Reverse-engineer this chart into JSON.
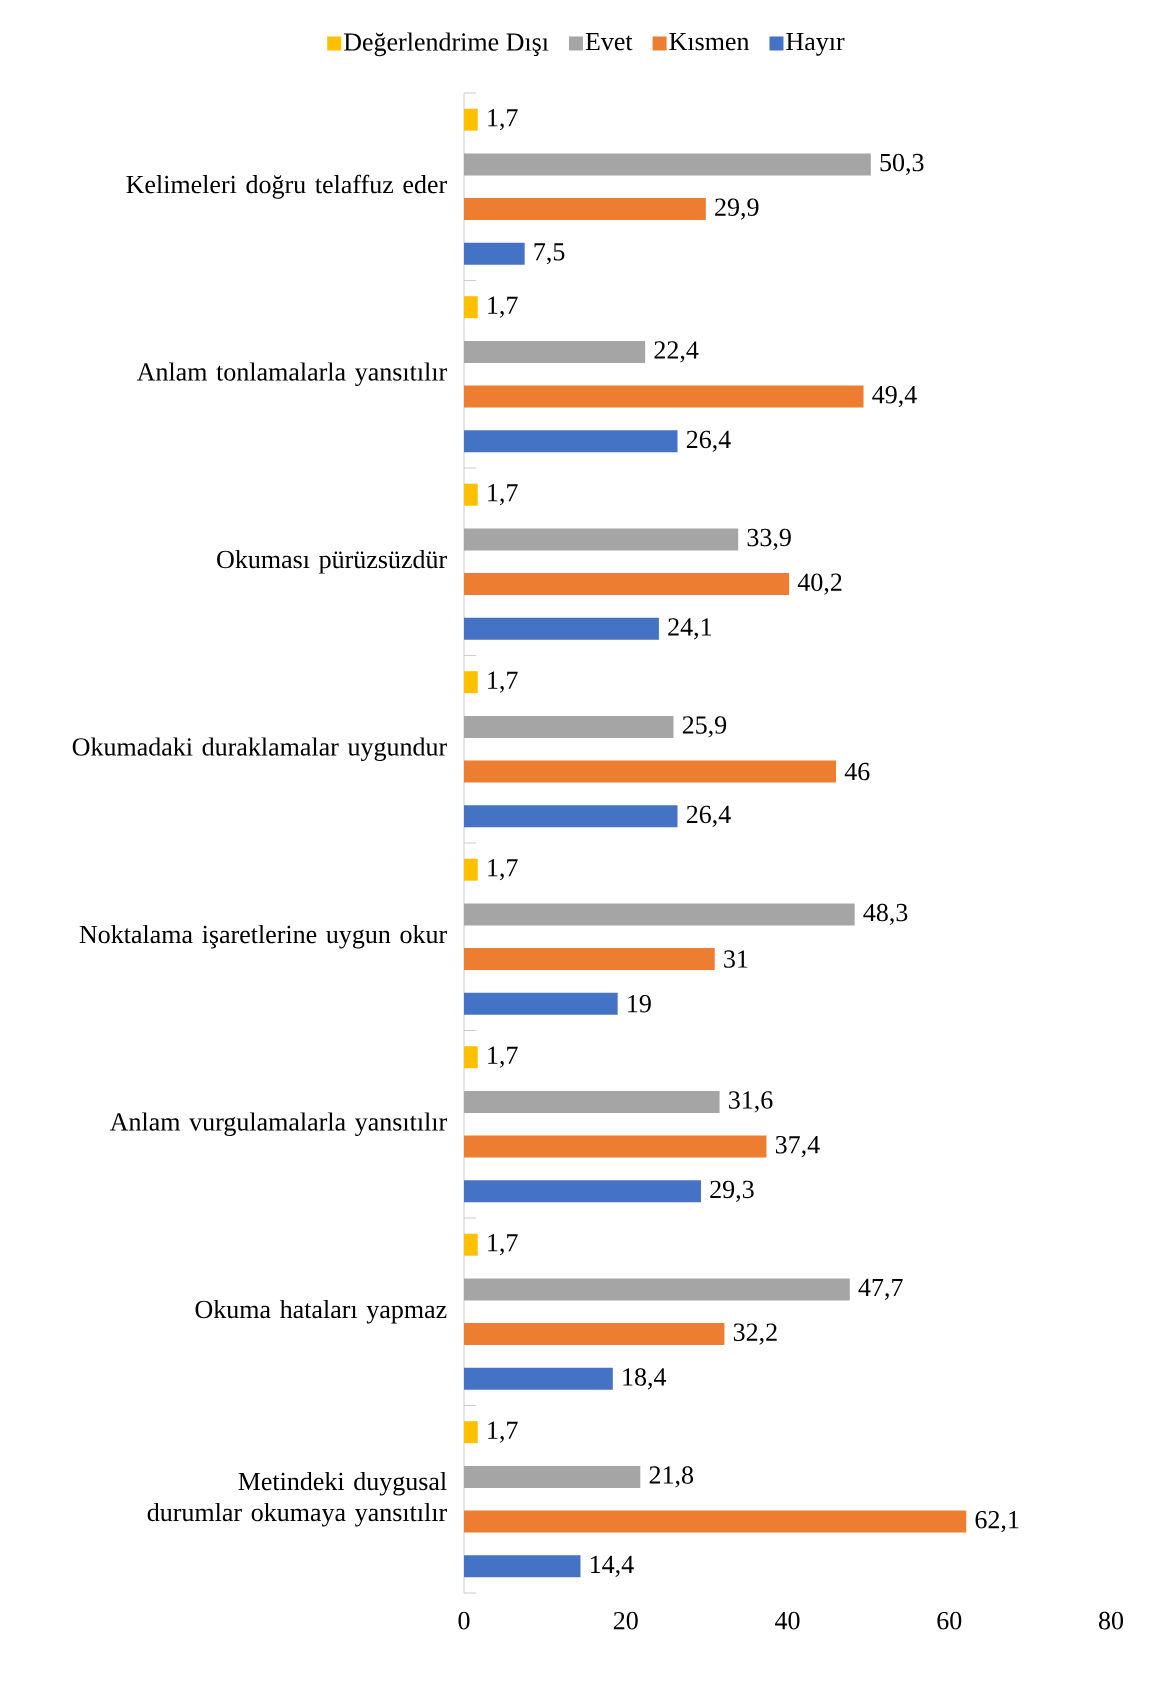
{
  "chart_data": {
    "type": "bar",
    "orientation": "horizontal",
    "legend": "top",
    "categories": [
      "Kelimeleri doğru telaffuz eder",
      "Anlam tonlamalarla yansıtılır",
      "Okuması pürüzsüzdür",
      "Okumadaki duraklamalar uygundur",
      "Noktalama işaretlerine uygun okur",
      "Anlam vurgulamalarla yansıtılır",
      "Okuma hataları yapmaz",
      "Metindeki duygusal durumlar okumaya yansıtılır"
    ],
    "series": [
      {
        "name": "Değerlendrime Dışı",
        "color": "#ffc000",
        "values": [
          1.7,
          1.7,
          1.7,
          1.7,
          1.7,
          1.7,
          1.7,
          1.7
        ],
        "value_labels": [
          "1,7",
          "1,7",
          "1,7",
          "1,7",
          "1,7",
          "1,7",
          "1,7",
          "1,7"
        ]
      },
      {
        "name": "Evet",
        "color": "#a5a5a5",
        "values": [
          50.3,
          22.4,
          33.9,
          25.9,
          48.3,
          31.6,
          47.7,
          21.8
        ],
        "value_labels": [
          "50,3",
          "22,4",
          "33,9",
          "25,9",
          "48,3",
          "31,6",
          "47,7",
          "21,8"
        ]
      },
      {
        "name": "Kısmen",
        "color": "#ed7d31",
        "values": [
          29.9,
          49.4,
          40.2,
          46,
          31,
          37.4,
          32.2,
          62.1
        ],
        "value_labels": [
          "29,9",
          "49,4",
          "40,2",
          "46",
          "31",
          "37,4",
          "32,2",
          "62,1"
        ]
      },
      {
        "name": "Hayır",
        "color": "#4472c4",
        "values": [
          7.5,
          26.4,
          24.1,
          26.4,
          19,
          29.3,
          18.4,
          14.4
        ],
        "value_labels": [
          "7,5",
          "26,4",
          "24,1",
          "26,4",
          "19",
          "29,3",
          "18,4",
          "14,4"
        ]
      }
    ],
    "xlim": [
      0,
      80
    ],
    "xticks": [
      0,
      20,
      40,
      60,
      80
    ]
  }
}
